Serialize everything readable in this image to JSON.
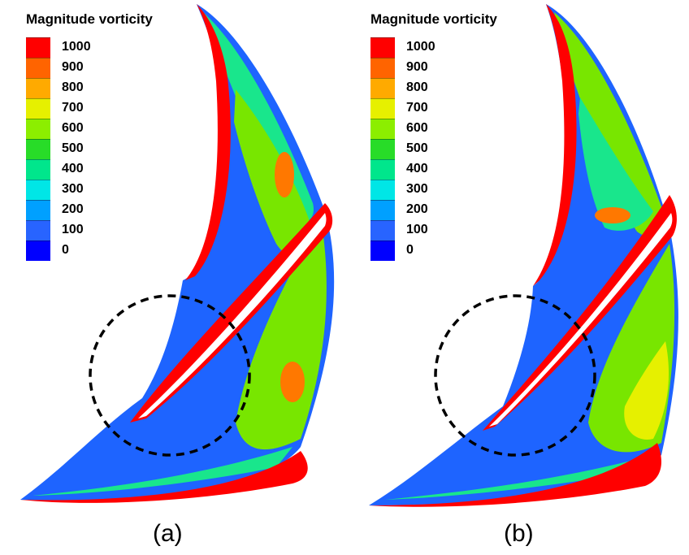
{
  "figure": {
    "panels": [
      {
        "label": "(a)",
        "legend_title": "Magnitude vorticity",
        "legend_ticks": [
          "1000",
          "900",
          "800",
          "700",
          "600",
          "500",
          "400",
          "300",
          "200",
          "100",
          "0"
        ]
      },
      {
        "label": "(b)",
        "legend_title": "Magnitude vorticity",
        "legend_ticks": [
          "1000",
          "900",
          "800",
          "700",
          "600",
          "500",
          "400",
          "300",
          "200",
          "100",
          "0"
        ]
      }
    ],
    "colorbar_colors": [
      "#ff0000",
      "#ff5a00",
      "#ffa000",
      "#ffe000",
      "#c8ff00",
      "#78e600",
      "#1edc28",
      "#00e696",
      "#00e6e6",
      "#00a0ff",
      "#2864ff",
      "#0000ff"
    ],
    "field_colors": {
      "background": "#1e64ff",
      "mid": "#19e68c",
      "light": "#78e600",
      "hot": "#ff0000",
      "orange": "#ff7800",
      "blade": "#ffffff",
      "outline": "#000000"
    }
  }
}
